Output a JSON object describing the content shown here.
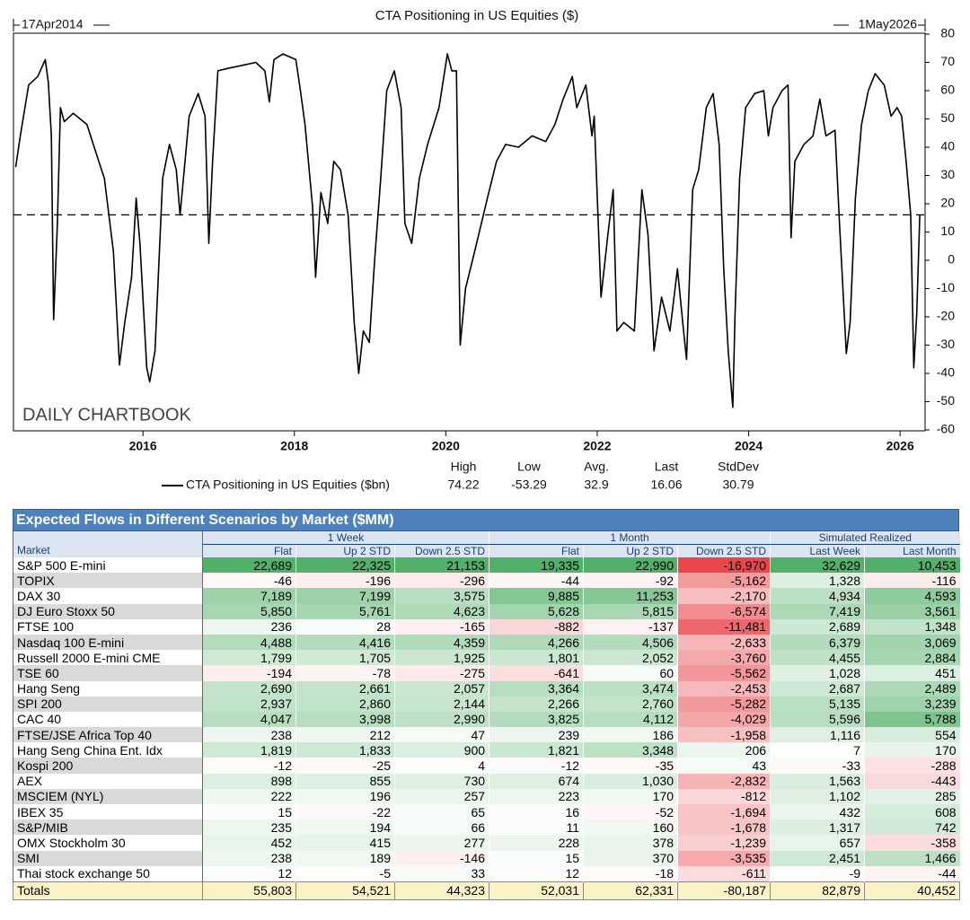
{
  "chart_data": {
    "type": "line",
    "title": "CTA Positioning in US Equities ($)",
    "start_label": "17Apr2014",
    "end_label": "1May2026",
    "watermark": "DAILY CHARTBOOK",
    "x": [
      2014.32,
      2014.38,
      2014.49,
      2014.61,
      2014.71,
      2014.75,
      2014.79,
      2014.82,
      2014.87,
      2014.91,
      2014.96,
      2015.08,
      2015.26,
      2015.38,
      2015.49,
      2015.61,
      2015.69,
      2015.76,
      2015.85,
      2015.91,
      2015.96,
      2016.05,
      2016.09,
      2016.16,
      2016.26,
      2016.35,
      2016.44,
      2016.49,
      2016.61,
      2016.73,
      2016.82,
      2016.87,
      2016.92,
      2016.99,
      2017.14,
      2017.32,
      2017.49,
      2017.61,
      2017.67,
      2017.73,
      2017.85,
      2018.02,
      2018.08,
      2018.14,
      2018.24,
      2018.28,
      2018.35,
      2018.44,
      2018.52,
      2018.61,
      2018.71,
      2018.79,
      2018.85,
      2018.91,
      2018.99,
      2019.06,
      2019.14,
      2019.22,
      2019.32,
      2019.41,
      2019.46,
      2019.55,
      2019.65,
      2019.76,
      2019.91,
      2020.02,
      2020.08,
      2020.14,
      2020.19,
      2020.26,
      2020.38,
      2020.55,
      2020.67,
      2020.79,
      2020.96,
      2021.14,
      2021.32,
      2021.44,
      2021.55,
      2021.67,
      2021.73,
      2021.85,
      2021.93,
      2021.96,
      2022.05,
      2022.14,
      2022.21,
      2022.26,
      2022.35,
      2022.49,
      2022.59,
      2022.67,
      2022.75,
      2022.85,
      2022.96,
      2023.06,
      2023.14,
      2023.18,
      2023.26,
      2023.34,
      2023.44,
      2023.53,
      2023.61,
      2023.67,
      2023.73,
      2023.79,
      2023.82,
      2023.88,
      2023.96,
      2024.08,
      2024.2,
      2024.26,
      2024.32,
      2024.44,
      2024.52,
      2024.56,
      2024.61,
      2024.73,
      2024.85,
      2024.94,
      2025.02,
      2025.14,
      2025.2,
      2025.25,
      2025.29,
      2025.34,
      2025.41,
      2025.49,
      2025.58,
      2025.67,
      2025.79,
      2025.88,
      2025.96,
      2026.02,
      2026.08,
      2026.14,
      2026.18,
      2026.22,
      2026.26
    ],
    "series": [
      {
        "name": "CTA Positioning in US Equities ($bn)",
        "color": "#000000",
        "values": [
          33,
          44,
          62,
          65,
          71,
          63,
          44,
          -21,
          13,
          54,
          49,
          52,
          48,
          38,
          29,
          3,
          -37,
          -22,
          -6,
          22,
          6,
          -38,
          -43,
          -32,
          29,
          41,
          32,
          16,
          51,
          59,
          51,
          6,
          35,
          67,
          68,
          69,
          70,
          67,
          56,
          71,
          73,
          71,
          60,
          48,
          19,
          -6,
          24,
          13,
          35,
          32,
          16,
          -22,
          -40,
          -25,
          -29,
          0,
          29,
          60,
          67,
          54,
          13,
          6,
          29,
          41,
          54,
          73,
          67,
          67,
          -30,
          -10,
          3,
          22,
          35,
          41,
          40,
          44,
          42,
          48,
          57,
          65,
          54,
          62,
          44,
          51,
          -13,
          9,
          25,
          -25,
          -22,
          -25,
          25,
          9,
          -32,
          -13,
          -25,
          -3,
          -25,
          -35,
          25,
          32,
          54,
          59,
          41,
          -3,
          -32,
          -52,
          -19,
          29,
          54,
          59,
          60,
          44,
          54,
          60,
          62,
          8,
          35,
          41,
          44,
          57,
          44,
          46,
          13,
          -13,
          -33,
          -22,
          22,
          48,
          60,
          66,
          62,
          51,
          54,
          51,
          35,
          16,
          -38,
          -19,
          16.06
        ]
      }
    ],
    "xlim": [
      2014.29,
      2026.33
    ],
    "xticks": [
      2016,
      2018,
      2020,
      2022,
      2024,
      2026
    ],
    "ylim": [
      -60,
      80
    ],
    "yticks": [
      80,
      70,
      60,
      50,
      40,
      30,
      20,
      10,
      0,
      -10,
      -20,
      -30,
      -40,
      -50,
      -60
    ],
    "stats": {
      "labels": [
        "High",
        "Low",
        "Avg.",
        "Last",
        "StdDev"
      ],
      "values": [
        74.22,
        -53.29,
        32.9,
        16.06,
        30.79
      ]
    }
  },
  "table": {
    "title": "Expected Flows in Different Scenarios by Market ($MM)",
    "groups": [
      "1 Week",
      "1 Month",
      "Simulated Realized"
    ],
    "columns": [
      "Market",
      "Flat",
      "Up 2 STD",
      "Down 2.5 STD",
      "Flat",
      "Up 2 STD",
      "Down 2.5 STD",
      "Last Week",
      "Last Month"
    ],
    "rows": [
      [
        "S&P 500 E-mini",
        "22,689",
        "22,325",
        "21,153",
        "19,335",
        "22,990",
        "-16,970",
        "32,629",
        "10,453"
      ],
      [
        "TOPIX",
        "-46",
        "-196",
        "-296",
        "-44",
        "-92",
        "-5,162",
        "1,328",
        "-116"
      ],
      [
        "DAX 30",
        "7,189",
        "7,199",
        "3,575",
        "9,885",
        "11,253",
        "-2,170",
        "4,934",
        "4,593"
      ],
      [
        "DJ Euro Stoxx 50",
        "5,850",
        "5,761",
        "4,623",
        "5,628",
        "5,815",
        "-6,574",
        "7,419",
        "3,561"
      ],
      [
        "FTSE 100",
        "236",
        "28",
        "-165",
        "-882",
        "-137",
        "-11,481",
        "2,689",
        "1,348"
      ],
      [
        "Nasdaq 100 E-mini",
        "4,488",
        "4,416",
        "4,359",
        "4,266",
        "4,506",
        "-2,633",
        "6,379",
        "3,069"
      ],
      [
        "Russell 2000 E-mini CME",
        "1,799",
        "1,705",
        "1,925",
        "1,801",
        "2,052",
        "-3,760",
        "4,455",
        "2,884"
      ],
      [
        "TSE 60",
        "-194",
        "-78",
        "-275",
        "-641",
        "60",
        "-5,562",
        "1,028",
        "451"
      ],
      [
        "Hang Seng",
        "2,690",
        "2,661",
        "2,057",
        "3,364",
        "3,474",
        "-2,453",
        "2,687",
        "2,489"
      ],
      [
        "SPI 200",
        "2,937",
        "2,860",
        "2,144",
        "2,266",
        "2,760",
        "-5,282",
        "5,135",
        "3,239"
      ],
      [
        "CAC 40",
        "4,047",
        "3,998",
        "2,990",
        "3,825",
        "4,112",
        "-4,029",
        "5,596",
        "5,788"
      ],
      [
        "FTSE/JSE Africa Top 40",
        "238",
        "212",
        "47",
        "239",
        "186",
        "-1,958",
        "1,116",
        "554"
      ],
      [
        "Hang Seng China Ent. Idx",
        "1,819",
        "1,833",
        "900",
        "1,821",
        "3,348",
        "206",
        "7",
        "170"
      ],
      [
        "Kospi 200",
        "-12",
        "-25",
        "4",
        "-12",
        "-35",
        "43",
        "-33",
        "-288"
      ],
      [
        "AEX",
        "898",
        "855",
        "730",
        "674",
        "1,030",
        "-2,832",
        "1,563",
        "-443"
      ],
      [
        "MSCIEM (NYL)",
        "222",
        "196",
        "257",
        "223",
        "170",
        "-812",
        "1,102",
        "285"
      ],
      [
        "IBEX 35",
        "15",
        "-22",
        "65",
        "16",
        "-52",
        "-1,694",
        "432",
        "608"
      ],
      [
        "S&P/MIB",
        "235",
        "194",
        "66",
        "11",
        "160",
        "-1,678",
        "1,317",
        "742"
      ],
      [
        "OMX Stockholm 30",
        "452",
        "415",
        "277",
        "228",
        "378",
        "-1,239",
        "657",
        "-358"
      ],
      [
        "SMI",
        "238",
        "189",
        "-146",
        "15",
        "370",
        "-3,535",
        "2,451",
        "1,466"
      ],
      [
        "Thai stock exchange 50",
        "12",
        "-5",
        "33",
        "12",
        "-18",
        "-611",
        "-9",
        "-44"
      ]
    ],
    "totals": [
      "Totals",
      "55,803",
      "54,521",
      "44,323",
      "52,031",
      "62,331",
      "-80,187",
      "82,879",
      "40,452"
    ]
  }
}
